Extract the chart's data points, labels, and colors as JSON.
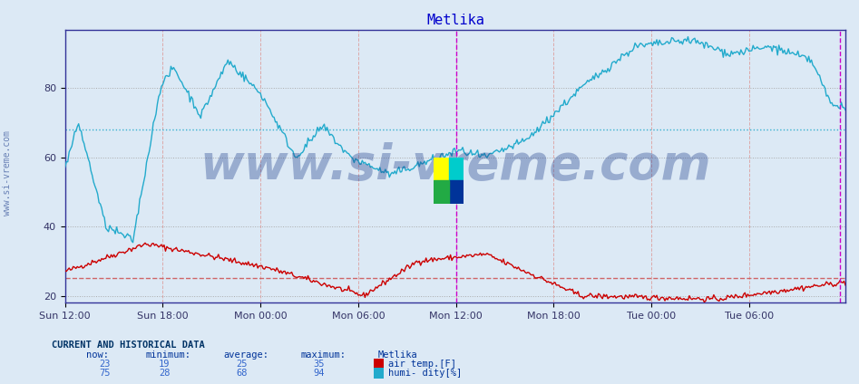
{
  "title": "Metlika",
  "title_color": "#0000cc",
  "title_fontsize": 11,
  "bg_color": "#dce9f5",
  "plot_bg_color": "#dce9f5",
  "ylim": [
    18,
    97
  ],
  "yticks": [
    20,
    40,
    60,
    80
  ],
  "x_labels": [
    "Sun 12:00",
    "Sun 18:00",
    "Mon 00:00",
    "Mon 06:00",
    "Mon 12:00",
    "Mon 18:00",
    "Tue 00:00",
    "Tue 06:00"
  ],
  "x_tick_positions": [
    0,
    72,
    144,
    216,
    288,
    360,
    432,
    504
  ],
  "total_points": 576,
  "dotted_grid_color": "#aaaaaa",
  "avg_line_red": 25,
  "avg_line_cyan": 68,
  "magenta_lines": [
    288,
    571
  ],
  "air_temp_color": "#cc0000",
  "humidity_color": "#22aacc",
  "watermark": "www.si-vreme.com",
  "watermark_color": "#1a3a8a",
  "watermark_alpha": 0.35,
  "watermark_fontsize": 38,
  "legend_now_temp": 23,
  "legend_min_temp": 19,
  "legend_avg_temp": 25,
  "legend_max_temp": 35,
  "legend_now_humi": 75,
  "legend_min_humi": 28,
  "legend_avg_humi": 68,
  "legend_max_humi": 94,
  "sidebar_text": "www.si-vreme.com",
  "sidebar_color": "#1a3a8a"
}
